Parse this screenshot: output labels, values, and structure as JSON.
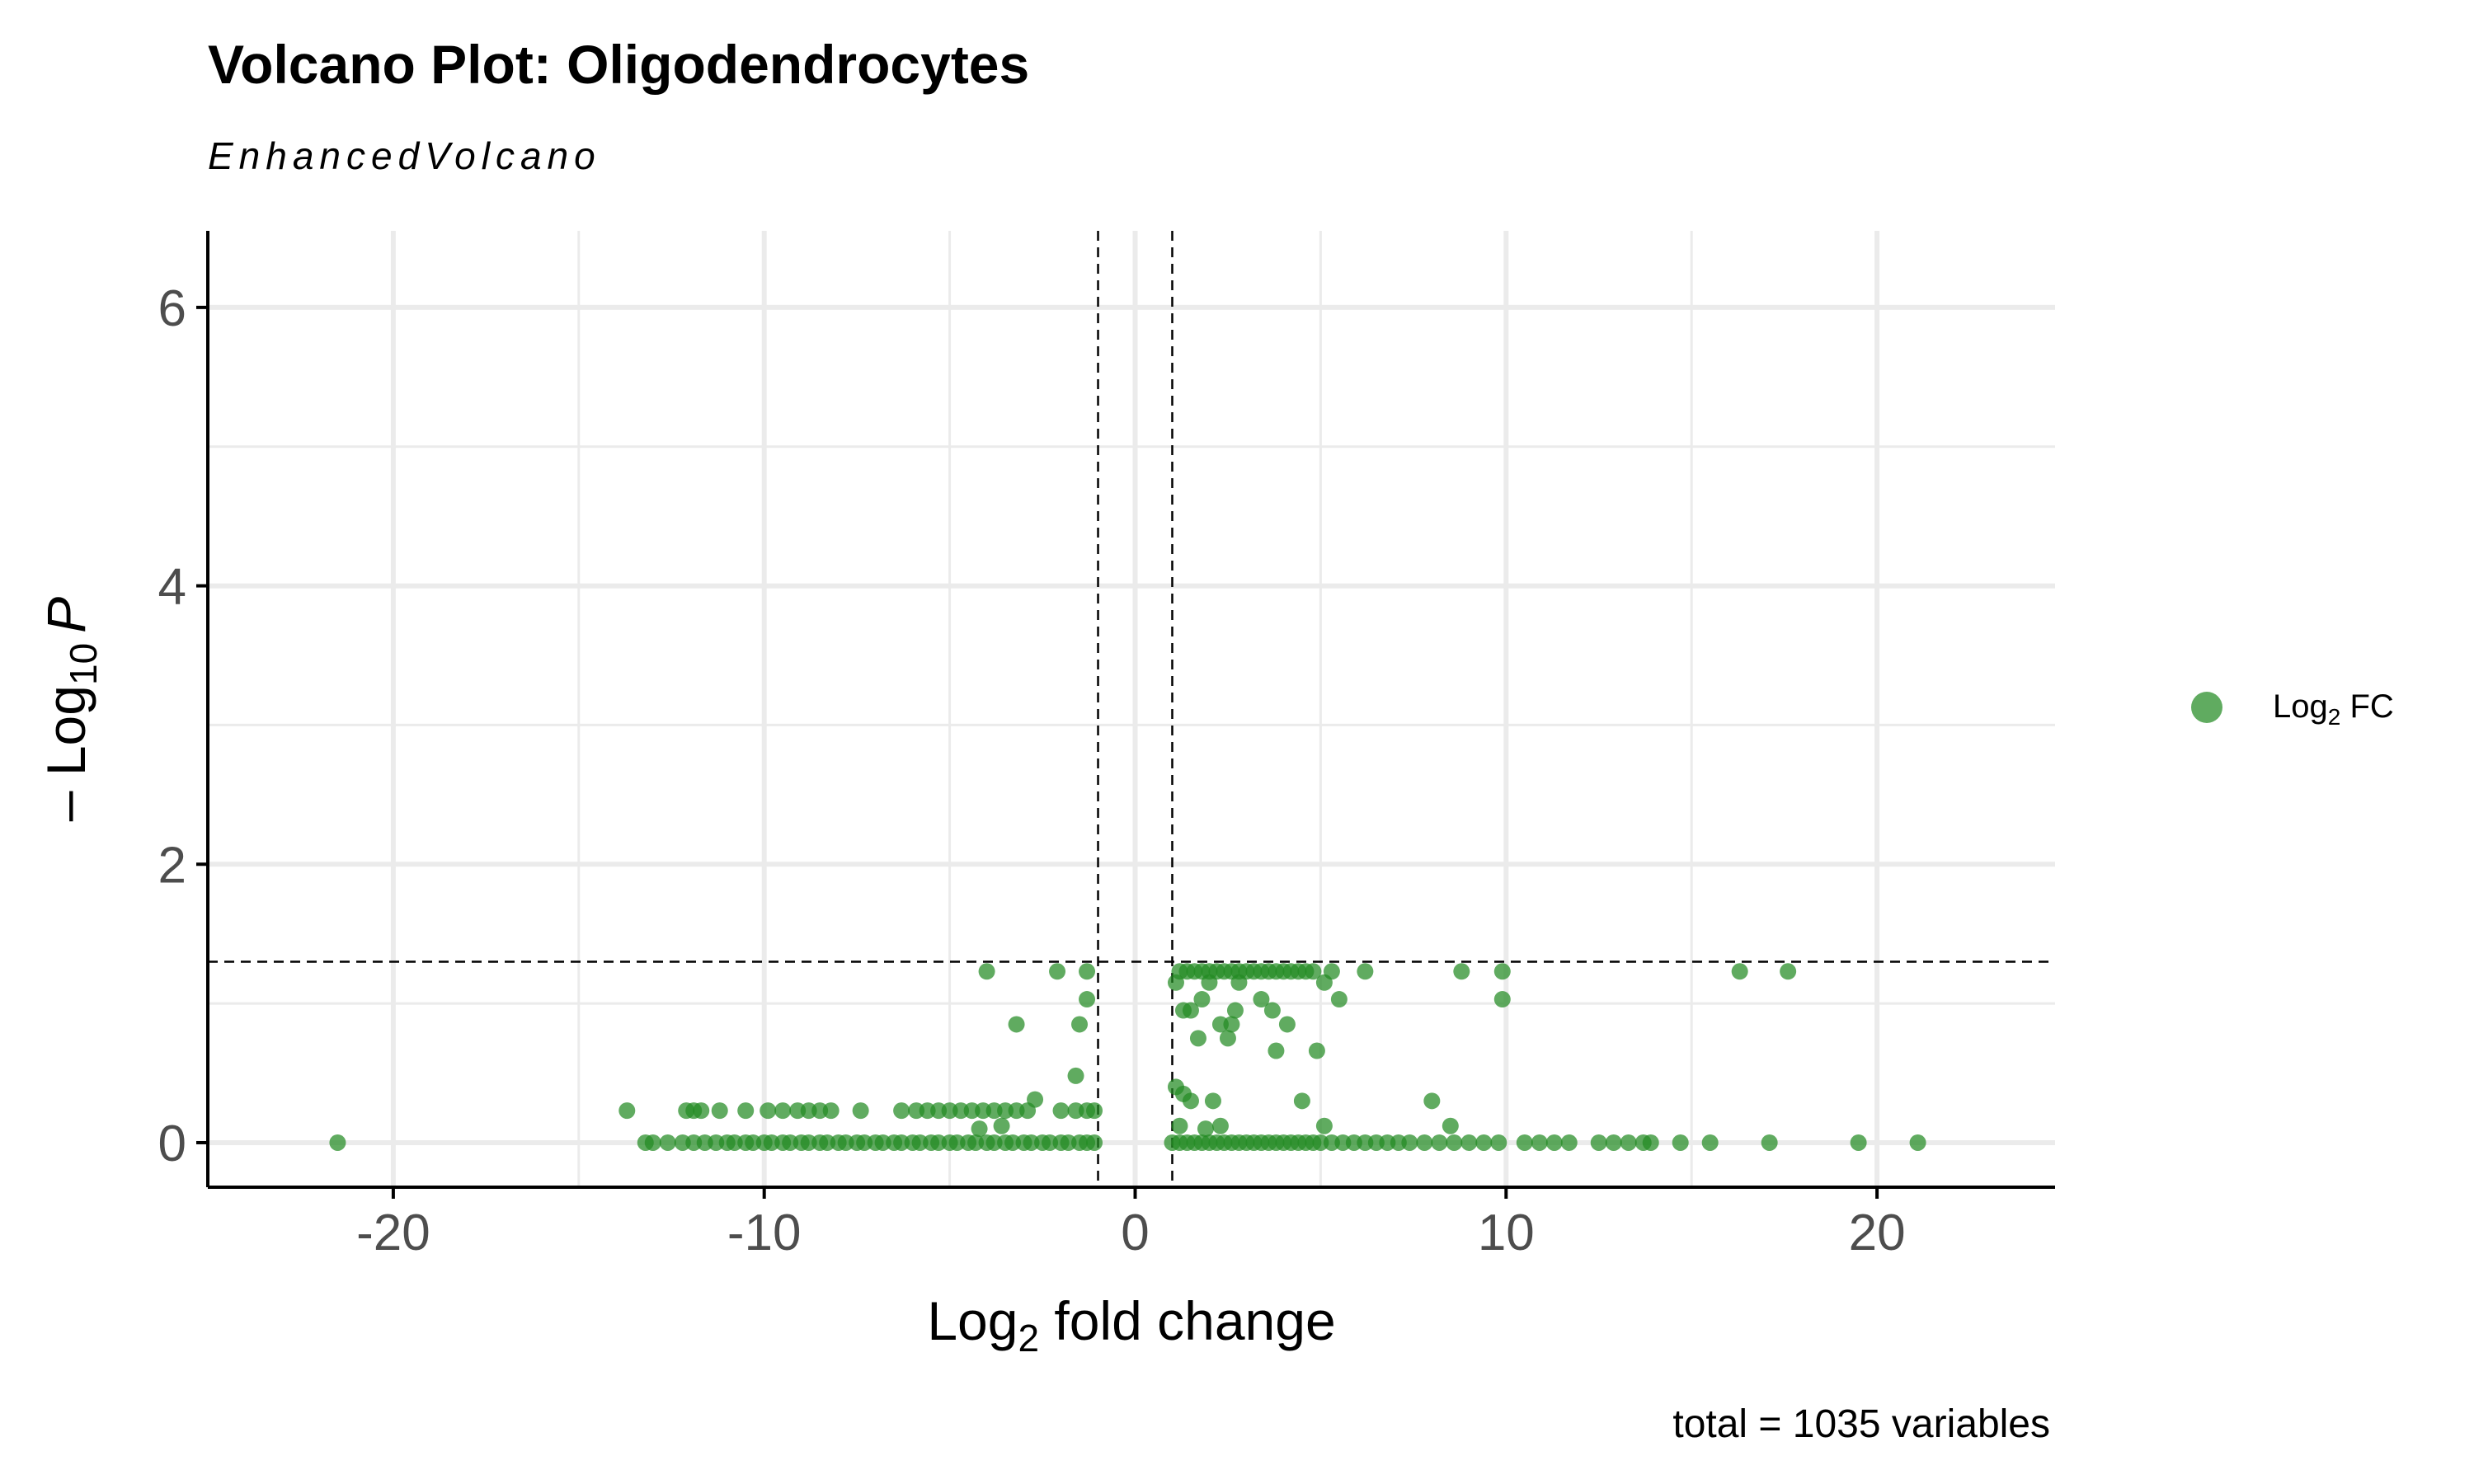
{
  "chart_data": {
    "type": "scatter",
    "title": "Volcano Plot: Oligodendrocytes",
    "subtitle": "EnhancedVolcano",
    "caption": "total = 1035 variables",
    "xlabel_base": "Log",
    "xlabel_sub": "2",
    "xlabel_rest": " fold change",
    "ylabel_prefix": "– Log",
    "ylabel_sub": "10",
    "ylabel_var": "P",
    "xlim": [
      -25,
      24.8
    ],
    "ylim": [
      -0.32,
      6.55
    ],
    "x_ticks": [
      -20,
      -10,
      0,
      10,
      20
    ],
    "x_tick_labels": [
      "-20",
      "-10",
      "0",
      "10",
      "20"
    ],
    "y_ticks": [
      0,
      2,
      4,
      6
    ],
    "y_tick_labels": [
      "0",
      "2",
      "4",
      "6"
    ],
    "grid": true,
    "fc_cutoff": 1,
    "p_cutoff_neglog10": 1.3,
    "legend_position": "right",
    "legend_label_base": "Log",
    "legend_label_sub": "2",
    "legend_label_rest": " FC",
    "colors": {
      "points": "#228B22",
      "cutoff_lines": "#000000",
      "grid": "#ebebeb"
    },
    "series": [
      {
        "name": "Log2 FC",
        "points": [
          [
            -21.5,
            0
          ],
          [
            -13.2,
            0
          ],
          [
            -13.0,
            0
          ],
          [
            -12.6,
            0
          ],
          [
            -12.2,
            0
          ],
          [
            -11.9,
            0
          ],
          [
            -11.6,
            0
          ],
          [
            -11.3,
            0
          ],
          [
            -11.0,
            0
          ],
          [
            -10.8,
            0
          ],
          [
            -10.5,
            0
          ],
          [
            -10.3,
            0
          ],
          [
            -10.0,
            0
          ],
          [
            -9.8,
            0
          ],
          [
            -9.5,
            0
          ],
          [
            -9.3,
            0
          ],
          [
            -9.0,
            0
          ],
          [
            -8.8,
            0
          ],
          [
            -8.5,
            0
          ],
          [
            -8.3,
            0
          ],
          [
            -8.0,
            0
          ],
          [
            -7.8,
            0
          ],
          [
            -7.5,
            0
          ],
          [
            -7.3,
            0
          ],
          [
            -7.0,
            0
          ],
          [
            -6.8,
            0
          ],
          [
            -6.5,
            0
          ],
          [
            -6.3,
            0
          ],
          [
            -6.0,
            0
          ],
          [
            -5.8,
            0
          ],
          [
            -5.5,
            0
          ],
          [
            -5.3,
            0
          ],
          [
            -5.0,
            0
          ],
          [
            -4.8,
            0
          ],
          [
            -4.5,
            0
          ],
          [
            -4.3,
            0
          ],
          [
            -4.0,
            0
          ],
          [
            -3.8,
            0
          ],
          [
            -3.5,
            0
          ],
          [
            -3.3,
            0
          ],
          [
            -3.0,
            0
          ],
          [
            -2.8,
            0
          ],
          [
            -2.5,
            0
          ],
          [
            -2.3,
            0
          ],
          [
            -2.0,
            0
          ],
          [
            -1.8,
            0
          ],
          [
            -1.5,
            0
          ],
          [
            -1.3,
            0
          ],
          [
            -1.1,
            0
          ],
          [
            1.0,
            0
          ],
          [
            1.2,
            0
          ],
          [
            1.4,
            0
          ],
          [
            1.6,
            0
          ],
          [
            1.8,
            0
          ],
          [
            2.0,
            0
          ],
          [
            2.2,
            0
          ],
          [
            2.4,
            0
          ],
          [
            2.6,
            0
          ],
          [
            2.8,
            0
          ],
          [
            3.0,
            0
          ],
          [
            3.2,
            0
          ],
          [
            3.4,
            0
          ],
          [
            3.6,
            0
          ],
          [
            3.8,
            0
          ],
          [
            4.0,
            0
          ],
          [
            4.2,
            0
          ],
          [
            4.4,
            0
          ],
          [
            4.6,
            0
          ],
          [
            4.8,
            0
          ],
          [
            5.0,
            0
          ],
          [
            5.3,
            0
          ],
          [
            5.6,
            0
          ],
          [
            5.9,
            0
          ],
          [
            6.2,
            0
          ],
          [
            6.5,
            0
          ],
          [
            6.8,
            0
          ],
          [
            7.1,
            0
          ],
          [
            7.4,
            0
          ],
          [
            7.8,
            0
          ],
          [
            8.2,
            0
          ],
          [
            8.6,
            0
          ],
          [
            9.0,
            0
          ],
          [
            9.4,
            0
          ],
          [
            9.8,
            0
          ],
          [
            10.5,
            0
          ],
          [
            10.9,
            0
          ],
          [
            11.3,
            0
          ],
          [
            11.7,
            0
          ],
          [
            12.5,
            0
          ],
          [
            12.9,
            0
          ],
          [
            13.3,
            0
          ],
          [
            13.7,
            0
          ],
          [
            13.9,
            0
          ],
          [
            14.7,
            0
          ],
          [
            15.5,
            0
          ],
          [
            17.1,
            0
          ],
          [
            19.5,
            0
          ],
          [
            21.1,
            0
          ],
          [
            -13.7,
            0.23
          ],
          [
            -12.1,
            0.23
          ],
          [
            -11.9,
            0.23
          ],
          [
            -11.7,
            0.23
          ],
          [
            -11.2,
            0.23
          ],
          [
            -10.5,
            0.23
          ],
          [
            -9.9,
            0.23
          ],
          [
            -9.5,
            0.23
          ],
          [
            -9.1,
            0.23
          ],
          [
            -8.8,
            0.23
          ],
          [
            -8.5,
            0.23
          ],
          [
            -8.2,
            0.23
          ],
          [
            -7.4,
            0.23
          ],
          [
            -6.3,
            0.23
          ],
          [
            -5.9,
            0.23
          ],
          [
            -5.6,
            0.23
          ],
          [
            -5.3,
            0.23
          ],
          [
            -5.0,
            0.23
          ],
          [
            -4.7,
            0.23
          ],
          [
            -4.4,
            0.23
          ],
          [
            -4.1,
            0.23
          ],
          [
            -3.8,
            0.23
          ],
          [
            -3.5,
            0.23
          ],
          [
            -3.2,
            0.23
          ],
          [
            -2.9,
            0.23
          ],
          [
            -2.0,
            0.23
          ],
          [
            -1.6,
            0.23
          ],
          [
            -1.3,
            0.23
          ],
          [
            -1.1,
            0.23
          ],
          [
            -4.2,
            0.1
          ],
          [
            -3.6,
            0.12
          ],
          [
            -2.7,
            0.31
          ],
          [
            -1.6,
            0.48
          ],
          [
            -1.5,
            0.85
          ],
          [
            -3.2,
            0.85
          ],
          [
            -1.3,
            1.03
          ],
          [
            1.1,
            0.4
          ],
          [
            1.3,
            0.35
          ],
          [
            1.5,
            0.3
          ],
          [
            2.1,
            0.3
          ],
          [
            4.5,
            0.3
          ],
          [
            8.0,
            0.3
          ],
          [
            1.2,
            0.12
          ],
          [
            1.9,
            0.1
          ],
          [
            2.3,
            0.12
          ],
          [
            5.1,
            0.12
          ],
          [
            8.5,
            0.12
          ],
          [
            1.3,
            0.95
          ],
          [
            1.5,
            0.95
          ],
          [
            1.8,
            1.03
          ],
          [
            1.7,
            0.75
          ],
          [
            2.3,
            0.85
          ],
          [
            2.6,
            0.85
          ],
          [
            2.5,
            0.75
          ],
          [
            2.7,
            0.95
          ],
          [
            3.4,
            1.03
          ],
          [
            3.7,
            0.95
          ],
          [
            4.1,
            0.85
          ],
          [
            3.8,
            0.66
          ],
          [
            4.9,
            0.66
          ],
          [
            5.5,
            1.03
          ],
          [
            9.9,
            1.03
          ],
          [
            -4.0,
            1.23
          ],
          [
            -2.1,
            1.23
          ],
          [
            -1.3,
            1.23
          ],
          [
            1.2,
            1.23
          ],
          [
            1.4,
            1.23
          ],
          [
            1.6,
            1.23
          ],
          [
            1.8,
            1.23
          ],
          [
            2.0,
            1.23
          ],
          [
            2.2,
            1.23
          ],
          [
            2.4,
            1.23
          ],
          [
            2.6,
            1.23
          ],
          [
            2.8,
            1.23
          ],
          [
            3.0,
            1.23
          ],
          [
            3.2,
            1.23
          ],
          [
            3.4,
            1.23
          ],
          [
            3.6,
            1.23
          ],
          [
            3.8,
            1.23
          ],
          [
            4.0,
            1.23
          ],
          [
            4.2,
            1.23
          ],
          [
            4.4,
            1.23
          ],
          [
            4.6,
            1.23
          ],
          [
            4.8,
            1.23
          ],
          [
            5.3,
            1.23
          ],
          [
            6.2,
            1.23
          ],
          [
            8.8,
            1.23
          ],
          [
            9.9,
            1.23
          ],
          [
            16.3,
            1.23
          ],
          [
            17.6,
            1.23
          ],
          [
            1.1,
            1.15
          ],
          [
            2.0,
            1.15
          ],
          [
            2.8,
            1.15
          ],
          [
            5.1,
            1.15
          ]
        ]
      }
    ]
  }
}
